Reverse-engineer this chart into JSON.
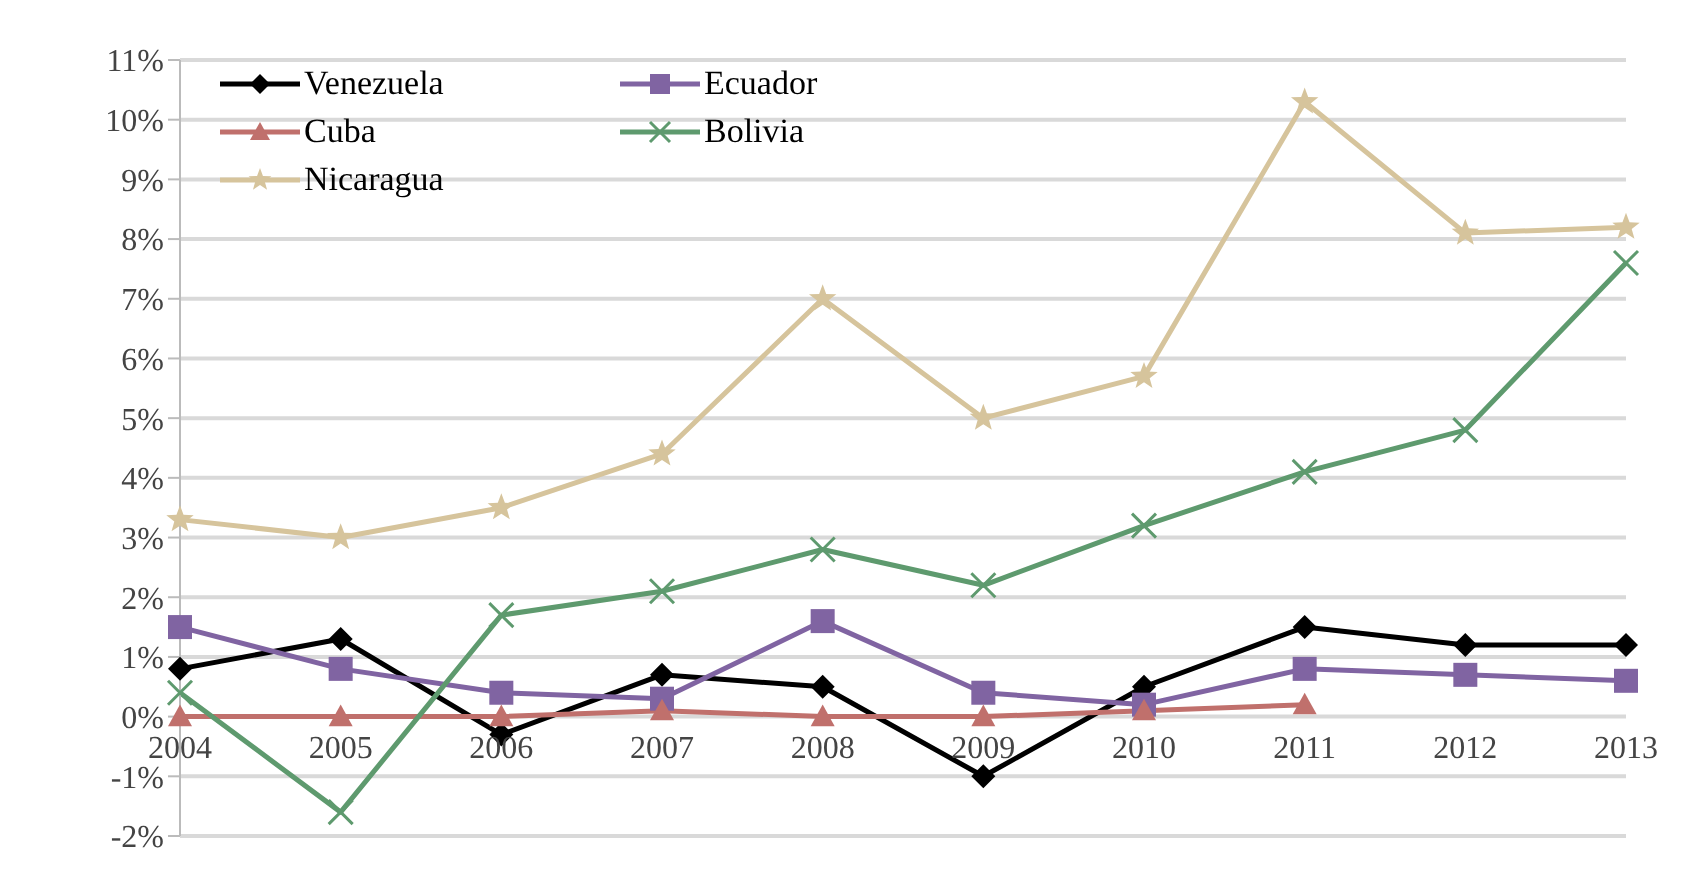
{
  "chart_data": {
    "type": "line",
    "categories": [
      "2004",
      "2005",
      "2006",
      "2007",
      "2008",
      "2009",
      "2010",
      "2011",
      "2012",
      "2013"
    ],
    "series": [
      {
        "name": "Venezuela",
        "color": "#000000",
        "marker": "diamond",
        "values": [
          0.8,
          1.3,
          -0.3,
          0.7,
          0.5,
          -1.0,
          0.5,
          1.5,
          1.2,
          1.2
        ]
      },
      {
        "name": "Ecuador",
        "color": "#8064a2",
        "marker": "square",
        "values": [
          1.5,
          0.8,
          0.4,
          0.3,
          1.6,
          0.4,
          0.2,
          0.8,
          0.7,
          0.6
        ]
      },
      {
        "name": "Cuba",
        "color": "#c0706c",
        "marker": "triangle",
        "values": [
          0,
          0,
          0,
          0.1,
          0,
          0,
          0.1,
          0.2,
          null,
          null
        ]
      },
      {
        "name": "Bolivia",
        "color": "#5e9a6e",
        "marker": "cross",
        "values": [
          0.4,
          -1.6,
          1.7,
          2.1,
          2.8,
          2.2,
          3.2,
          4.1,
          4.8,
          7.6
        ]
      },
      {
        "name": "Nicaragua",
        "color": "#d6c49c",
        "marker": "star",
        "values": [
          3.3,
          3.0,
          3.5,
          4.4,
          7.0,
          5.0,
          5.7,
          10.3,
          8.1,
          8.2
        ]
      }
    ],
    "ylim": [
      -2,
      11
    ],
    "yticks": [
      {
        "value": -2,
        "label": "-2%"
      },
      {
        "value": -1,
        "label": "-1%"
      },
      {
        "value": 0,
        "label": "0%"
      },
      {
        "value": 1,
        "label": "1%"
      },
      {
        "value": 2,
        "label": "2%"
      },
      {
        "value": 3,
        "label": "3%"
      },
      {
        "value": 4,
        "label": "4%"
      },
      {
        "value": 5,
        "label": "5%"
      },
      {
        "value": 6,
        "label": "6%"
      },
      {
        "value": 7,
        "label": "7%"
      },
      {
        "value": 8,
        "label": "8%"
      },
      {
        "value": 9,
        "label": "9%"
      },
      {
        "value": 10,
        "label": "10%"
      },
      {
        "value": 11,
        "label": "11%"
      }
    ],
    "grid": "y",
    "legend": "top left",
    "line_style": "solid"
  }
}
